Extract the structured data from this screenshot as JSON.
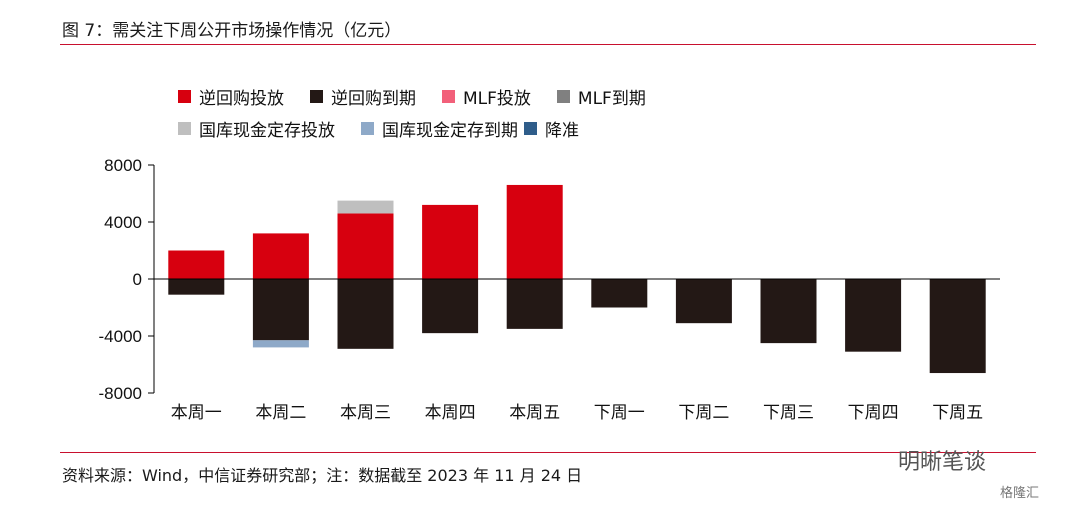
{
  "header": {
    "title": "图 7：需关注下周公开市场操作情况（亿元）"
  },
  "footer": {
    "source": "资料来源：Wind，中信证券研究部；注：数据截至 2023 年 11 月 24 日"
  },
  "watermark": {
    "text": "明晰笔谈",
    "sub": "格隆汇"
  },
  "chart_data": {
    "type": "bar",
    "stacked": true,
    "categories": [
      "本周一",
      "本周二",
      "本周三",
      "本周四",
      "本周五",
      "下周一",
      "下周二",
      "下周三",
      "下周四",
      "下周五"
    ],
    "ylim": [
      -8000,
      8000
    ],
    "yticks": [
      8000,
      4000,
      0,
      -4000,
      -8000
    ],
    "grid": false,
    "legend_position": "top",
    "series": [
      {
        "name": "逆回购投放",
        "color": "#d7000f",
        "values": [
          2000,
          3200,
          4600,
          5200,
          6600,
          0,
          0,
          0,
          0,
          0
        ]
      },
      {
        "name": "逆回购到期",
        "color": "#231815",
        "values": [
          -1100,
          -4300,
          -4900,
          -3800,
          -3500,
          -2000,
          -3100,
          -4500,
          -5100,
          -6600
        ]
      },
      {
        "name": "MLF投放",
        "color": "#f2607a",
        "values": [
          0,
          0,
          0,
          0,
          0,
          0,
          0,
          0,
          0,
          0
        ]
      },
      {
        "name": "MLF到期",
        "color": "#808080",
        "values": [
          0,
          0,
          0,
          0,
          0,
          0,
          0,
          0,
          0,
          0
        ]
      },
      {
        "name": "国库现金定存投放",
        "color": "#bfbfbf",
        "values": [
          0,
          0,
          900,
          0,
          0,
          0,
          0,
          0,
          0,
          0
        ]
      },
      {
        "name": "国库现金定存到期",
        "color": "#8ea9c8",
        "values": [
          0,
          -500,
          0,
          0,
          0,
          0,
          0,
          0,
          0,
          0
        ]
      },
      {
        "name": "降准",
        "color": "#2f5d8a",
        "values": [
          0,
          0,
          0,
          0,
          0,
          0,
          0,
          0,
          0,
          0
        ]
      }
    ]
  }
}
